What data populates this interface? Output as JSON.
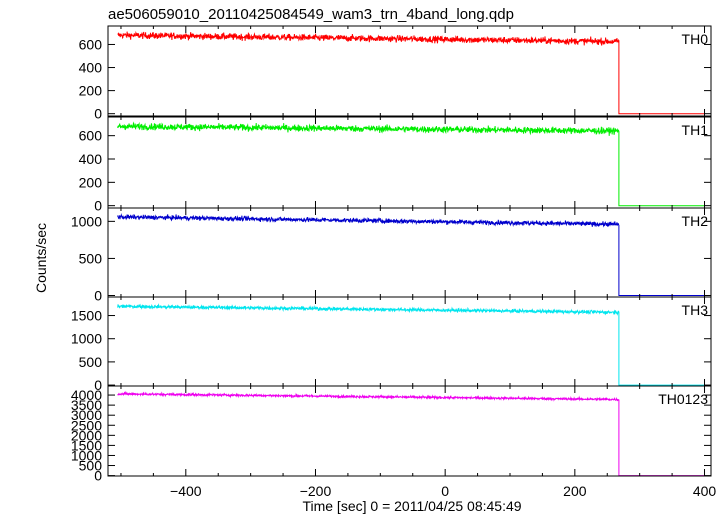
{
  "chart_data": {
    "type": "line",
    "title": "ae506059010_20110425084549_wam3_trn_4band_long.qdp",
    "xlabel": "Time [sec] 0 = 2011/04/25 08:45:49",
    "ylabel": "Counts/sec",
    "xlim": [
      -520,
      410
    ],
    "x_ticks": [
      -400,
      -200,
      0,
      200,
      400
    ],
    "drop_time": 268,
    "panels": [
      {
        "name": "TH0",
        "color": "#ff0000",
        "ylim": [
          -20,
          760
        ],
        "y_ticks": [
          0,
          200,
          400,
          600
        ],
        "level_start": 680,
        "level_end": 625,
        "noise": 28,
        "after": 0
      },
      {
        "name": "TH1",
        "color": "#00ee00",
        "ylim": [
          -20,
          760
        ],
        "y_ticks": [
          0,
          200,
          400,
          600
        ],
        "level_start": 680,
        "level_end": 640,
        "noise": 28,
        "after": 0
      },
      {
        "name": "TH2",
        "color": "#0000cc",
        "ylim": [
          -20,
          1180
        ],
        "y_ticks": [
          0,
          500,
          1000
        ],
        "level_start": 1060,
        "level_end": 960,
        "noise": 30,
        "after": 0
      },
      {
        "name": "TH3",
        "color": "#00e5ee",
        "ylim": [
          -20,
          1900
        ],
        "y_ticks": [
          0,
          500,
          1000,
          1500
        ],
        "level_start": 1700,
        "level_end": 1570,
        "noise": 35,
        "after": 0
      },
      {
        "name": "TH0123",
        "color": "#ee00ee",
        "ylim": [
          -20,
          4450
        ],
        "y_ticks": [
          0,
          500,
          1000,
          1500,
          2000,
          2500,
          3000,
          3500,
          4000
        ],
        "level_start": 4060,
        "level_end": 3780,
        "noise": 55,
        "after": 0
      }
    ]
  }
}
